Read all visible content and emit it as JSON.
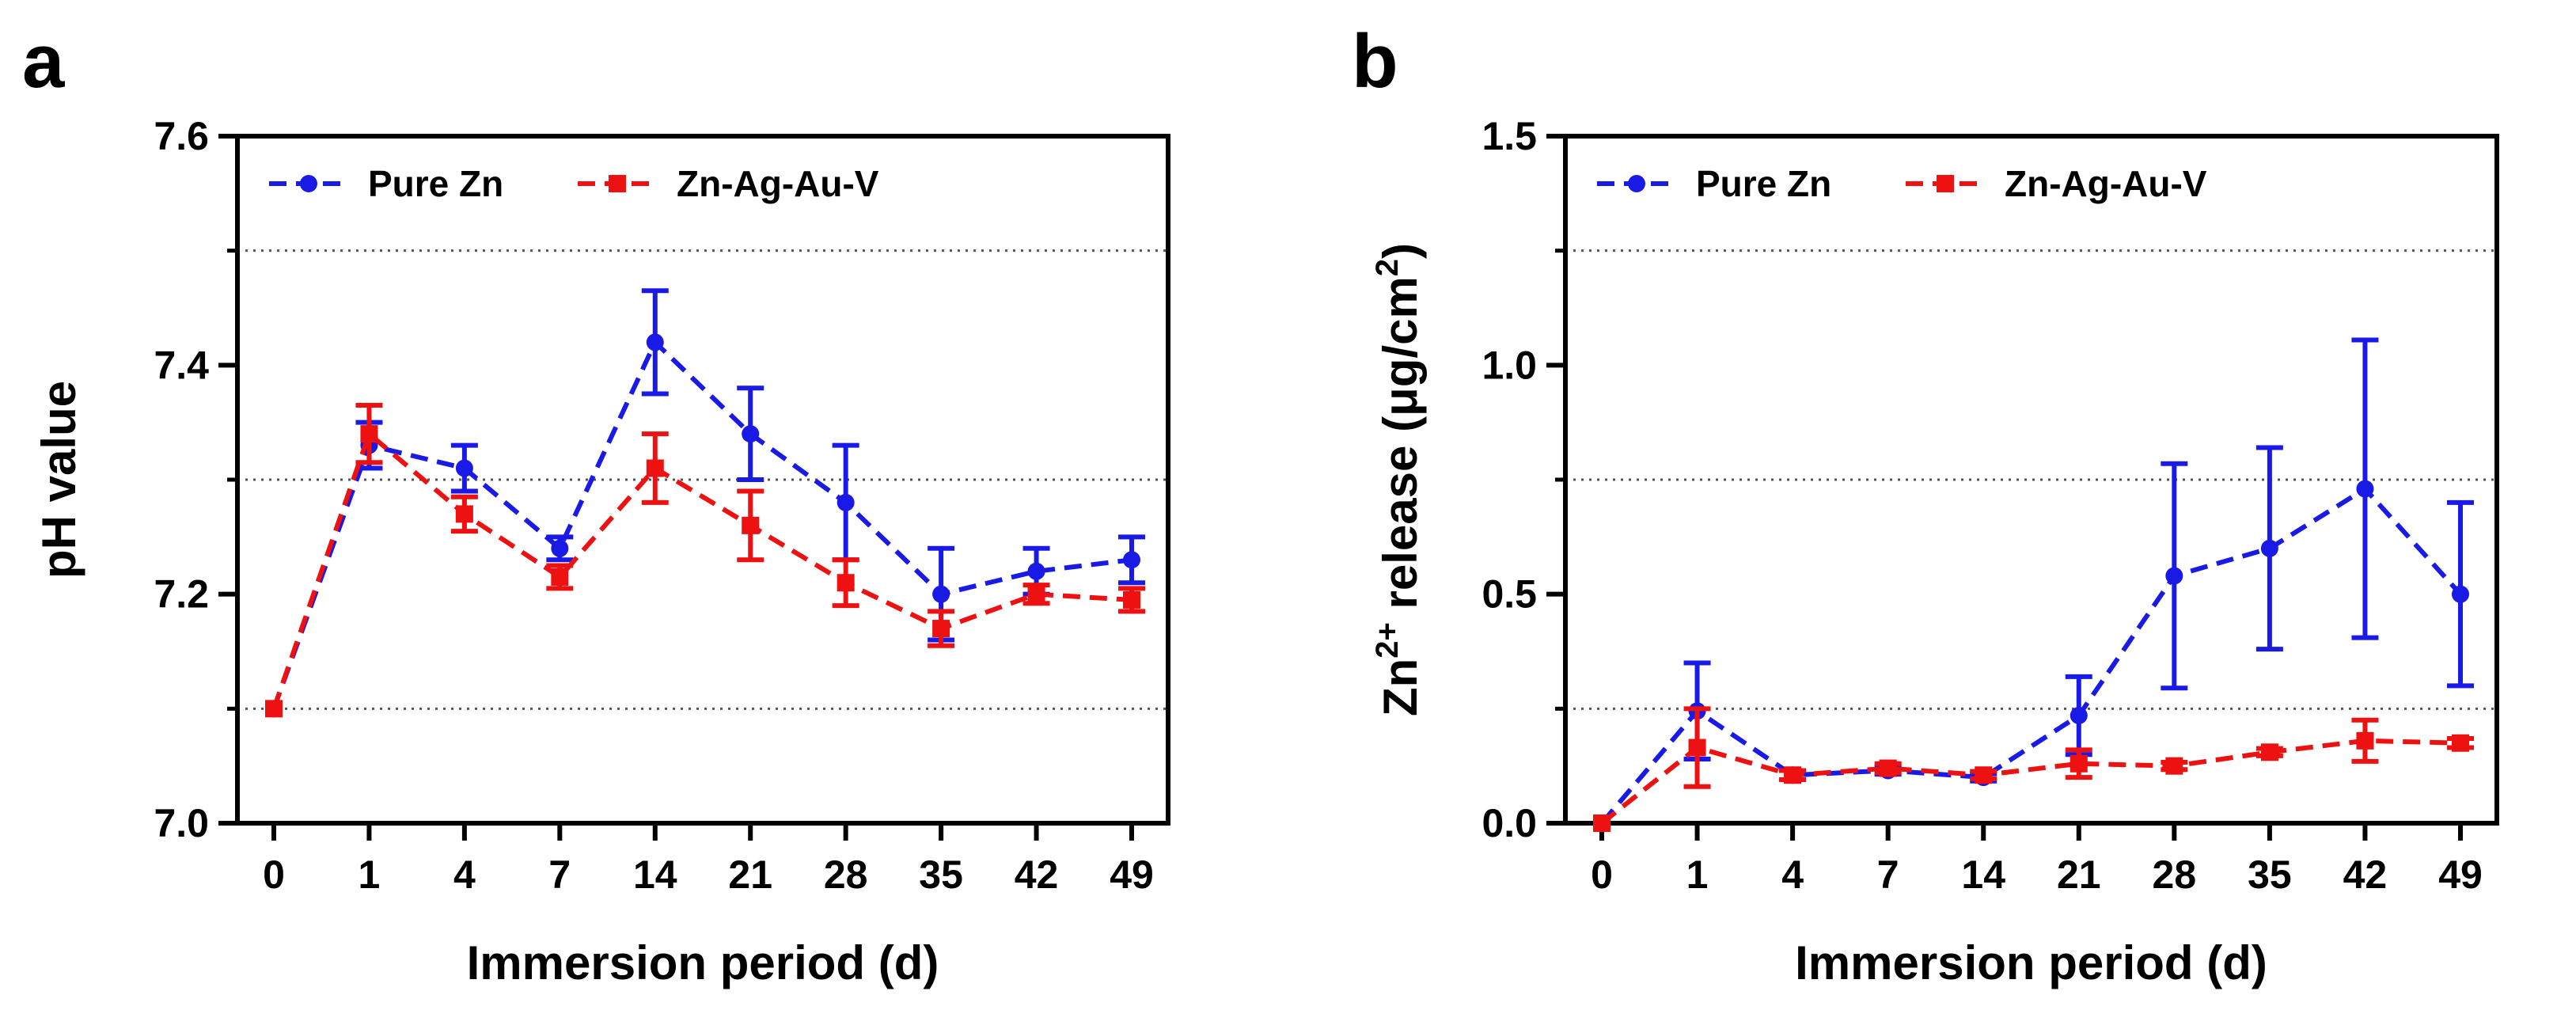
{
  "figure": {
    "panels": [
      "a",
      "b"
    ]
  },
  "colors": {
    "pure_zn": "#1a1ae6",
    "zn_ag_au_v": "#ee1111",
    "axis": "#000000",
    "grid": "#555555"
  },
  "chart_data": [
    {
      "panel": "a",
      "type": "line",
      "title": "",
      "xlabel": "Immersion period (d)",
      "ylabel": "pH value",
      "ylim": [
        7.0,
        7.6
      ],
      "yticks": [
        "7.0",
        "7.2",
        "7.4",
        "7.6"
      ],
      "ytick_values": [
        7.0,
        7.2,
        7.4,
        7.6
      ],
      "grid_lines": [
        7.1,
        7.3,
        7.5
      ],
      "categories": [
        "0",
        "1",
        "4",
        "7",
        "14",
        "21",
        "28",
        "35",
        "42",
        "49"
      ],
      "legend_position": "top-left",
      "series": [
        {
          "name": "Pure Zn",
          "color": "#1a1ae6",
          "marker": "circle",
          "values": [
            7.1,
            7.33,
            7.31,
            7.24,
            7.42,
            7.34,
            7.28,
            7.2,
            7.22,
            7.23
          ],
          "errors": [
            0.0,
            0.02,
            0.02,
            0.01,
            0.045,
            0.04,
            0.05,
            0.04,
            0.02,
            0.02
          ]
        },
        {
          "name": "Zn-Ag-Au-V",
          "color": "#ee1111",
          "marker": "square",
          "values": [
            7.1,
            7.34,
            7.27,
            7.215,
            7.31,
            7.26,
            7.21,
            7.17,
            7.2,
            7.195
          ],
          "errors": [
            0.0,
            0.025,
            0.015,
            0.01,
            0.03,
            0.03,
            0.02,
            0.015,
            0.008,
            0.01
          ]
        }
      ]
    },
    {
      "panel": "b",
      "type": "line",
      "title": "",
      "xlabel": "Immersion period (d)",
      "ylabel": "Zn2+ release (μg/cm2)",
      "ylabel_parts": {
        "zn": "Zn",
        "charge": "2+",
        "text": " release (μg/cm",
        "exp": "2",
        "close": ")"
      },
      "ylim": [
        0.0,
        1.5
      ],
      "yticks": [
        "0.0",
        "0.5",
        "1.0",
        "1.5"
      ],
      "ytick_values": [
        0.0,
        0.5,
        1.0,
        1.5
      ],
      "grid_lines": [
        0.25,
        0.75,
        1.25
      ],
      "categories": [
        "0",
        "1",
        "4",
        "7",
        "14",
        "21",
        "28",
        "35",
        "42",
        "49"
      ],
      "legend_position": "top-left",
      "series": [
        {
          "name": "Pure Zn",
          "color": "#1a1ae6",
          "marker": "circle",
          "values": [
            0.0,
            0.245,
            0.105,
            0.115,
            0.1,
            0.235,
            0.54,
            0.6,
            0.73,
            0.5
          ],
          "errors": [
            0.0,
            0.105,
            0.01,
            0.008,
            0.008,
            0.085,
            0.245,
            0.22,
            0.325,
            0.2
          ]
        },
        {
          "name": "Zn-Ag-Au-V",
          "color": "#ee1111",
          "marker": "square",
          "values": [
            0.0,
            0.165,
            0.105,
            0.12,
            0.105,
            0.13,
            0.125,
            0.155,
            0.18,
            0.175
          ],
          "errors": [
            0.0,
            0.085,
            0.01,
            0.01,
            0.008,
            0.03,
            0.008,
            0.008,
            0.045,
            0.01
          ]
        }
      ]
    }
  ]
}
